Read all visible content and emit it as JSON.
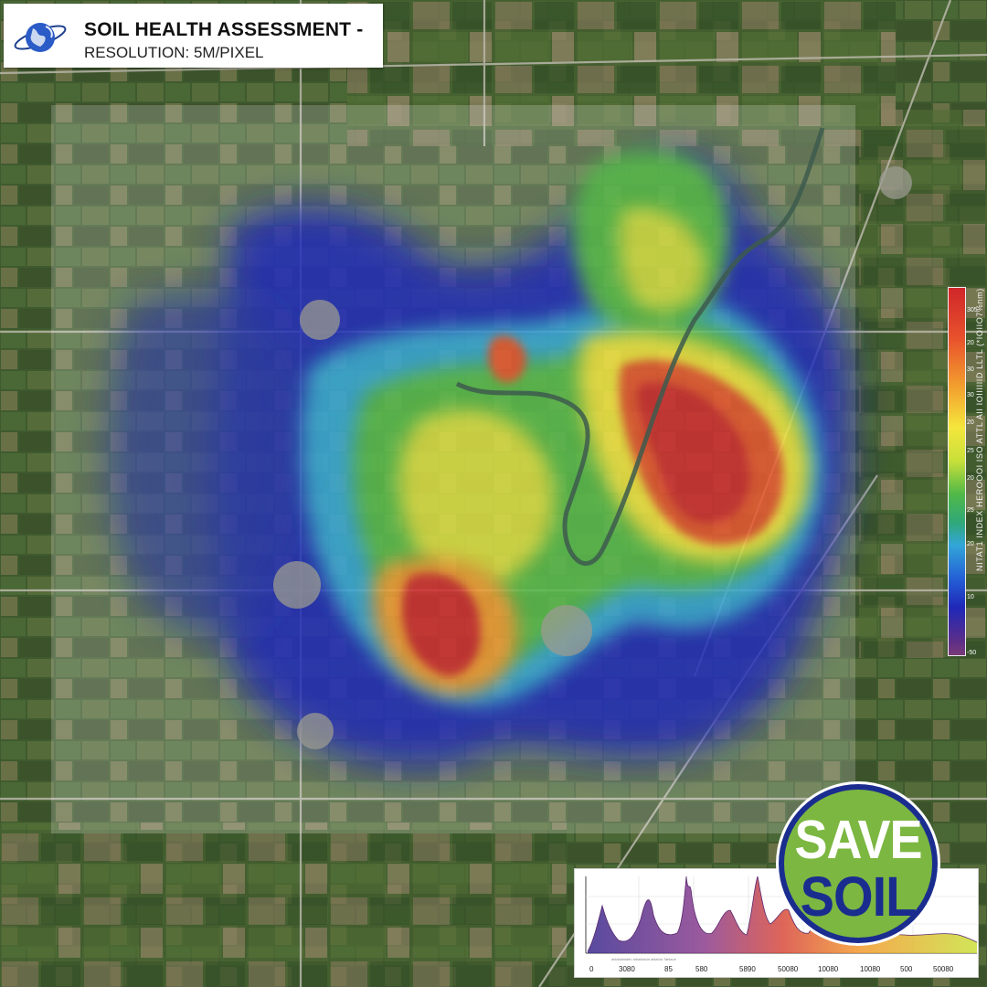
{
  "header": {
    "title": "SOIL HEALTH ASSESSMENT -",
    "subtitle": "RESOLUTION: 5M/PIXEL",
    "logo_icon": "globe-icon"
  },
  "legend": {
    "title": "NITAT1 INDEX HEROOOI ISO ATTL AII IOIIIIIID LLTL (*IOIIO7%nm)",
    "top_label": "305",
    "ticks": [
      "305",
      "20",
      "30",
      "30",
      "20",
      "25",
      "20",
      "25",
      "20",
      "10",
      "-50"
    ],
    "colors": [
      "#d0262a",
      "#f39a2e",
      "#f4e63c",
      "#52b947",
      "#33a6d8",
      "#2461d6",
      "#1f28b8",
      "#7a3a78"
    ]
  },
  "inset_chart": {
    "x_ticks": [
      "0",
      "3080",
      "85",
      "580",
      "5890",
      "50080",
      "10080",
      "10080",
      "500",
      "50080"
    ],
    "caption": "aldaldaldalfu albaldalda aldalda Tablaue"
  },
  "badge": {
    "line1": "SAVE",
    "line2": "SOIL",
    "ring_color": "#1a2d8f",
    "fill_color": "#7cb741"
  },
  "colors": {
    "high": "#d0262a",
    "mid_high": "#f39a2e",
    "mid": "#f4e63c",
    "mid_low": "#52b947",
    "low": "#1f28b8"
  }
}
